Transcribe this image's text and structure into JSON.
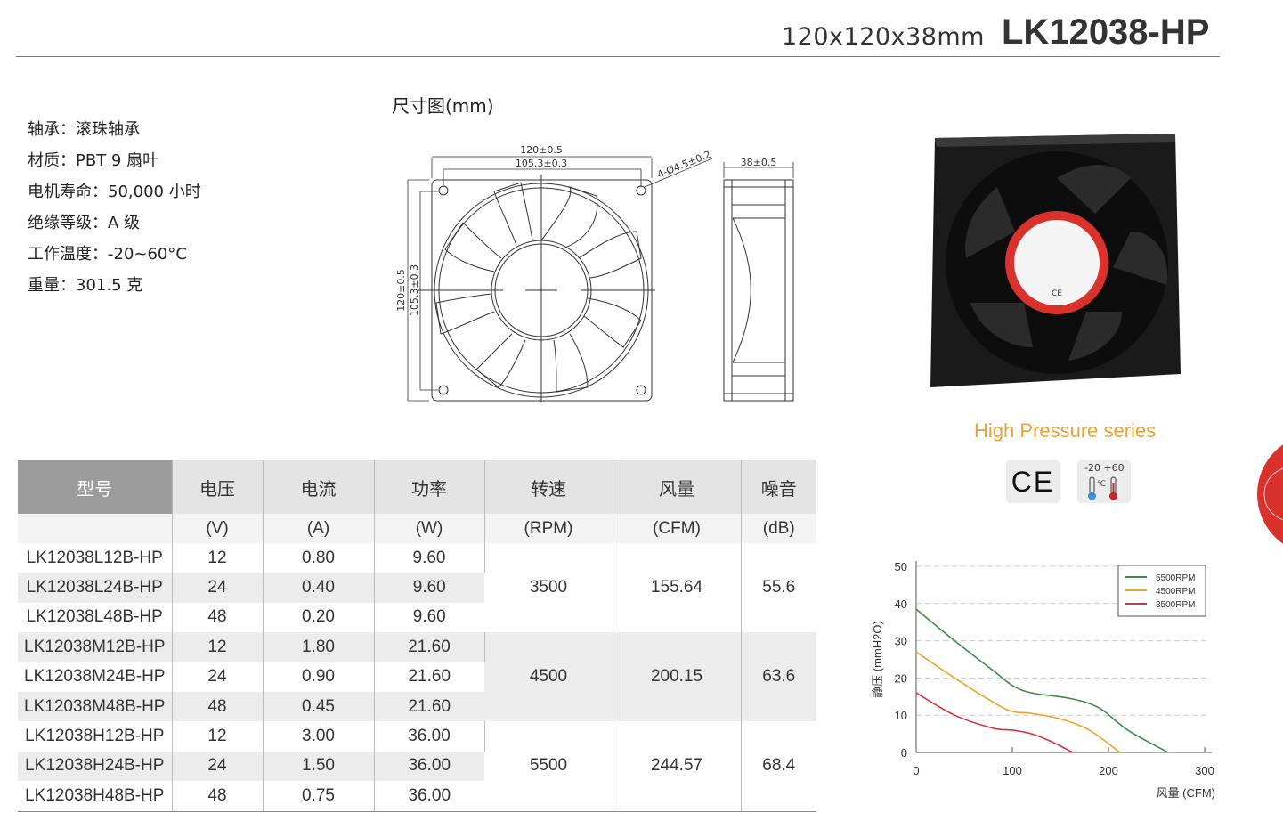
{
  "header": {
    "size": "120x120x38mm",
    "model": "LK12038-HP"
  },
  "specs": [
    {
      "label": "轴承：",
      "value": "滚珠轴承"
    },
    {
      "label": "材质：",
      "value": "PBT 9 扇叶"
    },
    {
      "label": "电机寿命：",
      "value": "50,000 小时"
    },
    {
      "label": "绝缘等级：",
      "value": "A 级"
    },
    {
      "label": "工作温度：",
      "value": "-20~60°C"
    },
    {
      "label": "重量：",
      "value": "301.5 克"
    }
  ],
  "drawing": {
    "title": "尺寸图(mm)",
    "width_outer": "120±0.5",
    "width_inner": "105.3±0.3",
    "hole": "4-Ø4.5±0.2",
    "height_outer": "120±0.5",
    "height_inner": "105.3±0.3",
    "depth": "38±0.5"
  },
  "product": {
    "series": "High Pressure series",
    "ce": "CE",
    "temp_low": "-20",
    "temp_high": "+60",
    "temp_unit": "℃",
    "colors": {
      "series": "#e7a23a",
      "accent": "#d9312b"
    }
  },
  "table": {
    "headers": [
      "型号",
      "电压",
      "电流",
      "功率",
      "转速",
      "风量",
      "噪音"
    ],
    "units": [
      "",
      "(V)",
      "(A)",
      "(W)",
      "(RPM)",
      "(CFM)",
      "(dB)"
    ],
    "rows": [
      [
        "LK12038L12B-HP",
        "12",
        "0.80",
        "9.60"
      ],
      [
        "LK12038L24B-HP",
        "24",
        "0.40",
        "9.60"
      ],
      [
        "LK12038L48B-HP",
        "48",
        "0.20",
        "9.60"
      ],
      [
        "LK12038M12B-HP",
        "12",
        "1.80",
        "21.60"
      ],
      [
        "LK12038M24B-HP",
        "24",
        "0.90",
        "21.60"
      ],
      [
        "LK12038M48B-HP",
        "48",
        "0.45",
        "21.60"
      ],
      [
        "LK12038H12B-HP",
        "12",
        "3.00",
        "36.00"
      ],
      [
        "LK12038H24B-HP",
        "24",
        "1.50",
        "36.00"
      ],
      [
        "LK12038H48B-HP",
        "48",
        "0.75",
        "36.00"
      ]
    ],
    "groups": [
      {
        "rpm": "3500",
        "cfm": "155.64",
        "db": "55.6"
      },
      {
        "rpm": "4500",
        "cfm": "200.15",
        "db": "63.6"
      },
      {
        "rpm": "5500",
        "cfm": "244.57",
        "db": "68.4"
      }
    ]
  },
  "chart_data": {
    "type": "line",
    "xlabel": "风量 (CFM)",
    "ylabel": "静压 (mmH2O)",
    "xlim": [
      0,
      300
    ],
    "ylim": [
      0,
      50
    ],
    "xticks": [
      0,
      100,
      200,
      300
    ],
    "yticks": [
      0,
      10,
      20,
      30,
      40,
      50
    ],
    "grid": "horizontal dashed",
    "legend": "top-right",
    "series": [
      {
        "name": "5500RPM",
        "color": "#3f8a4a",
        "points": [
          [
            0,
            38.5
          ],
          [
            40,
            30
          ],
          [
            80,
            22
          ],
          [
            100,
            18
          ],
          [
            120,
            16
          ],
          [
            160,
            14.5
          ],
          [
            190,
            12
          ],
          [
            220,
            6
          ],
          [
            262,
            0
          ]
        ]
      },
      {
        "name": "4500RPM",
        "color": "#f0a42a",
        "points": [
          [
            0,
            27
          ],
          [
            40,
            20
          ],
          [
            80,
            13.5
          ],
          [
            100,
            11
          ],
          [
            120,
            10.5
          ],
          [
            150,
            9
          ],
          [
            180,
            6
          ],
          [
            212,
            0
          ]
        ]
      },
      {
        "name": "3500RPM",
        "color": "#d6333a",
        "points": [
          [
            0,
            16
          ],
          [
            40,
            10
          ],
          [
            80,
            6.5
          ],
          [
            100,
            6
          ],
          [
            120,
            5
          ],
          [
            140,
            3
          ],
          [
            163,
            0
          ]
        ]
      }
    ]
  }
}
